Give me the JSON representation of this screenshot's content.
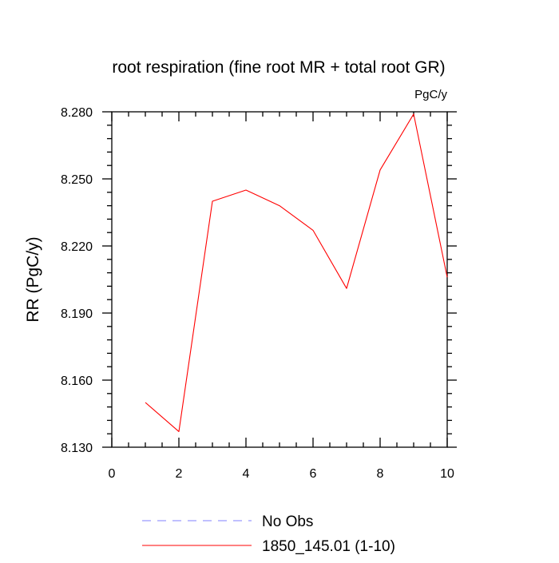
{
  "chart_data": {
    "type": "line",
    "title": "root respiration (fine root MR + total root GR)",
    "units_label": "PgC/y",
    "xlabel": "",
    "ylabel": "RR  (PgC/y)",
    "xlim": [
      0,
      10
    ],
    "ylim": [
      8.13,
      8.28
    ],
    "x_ticks": [
      0,
      2,
      4,
      6,
      8,
      10
    ],
    "x_tick_labels": [
      "0",
      "2",
      "4",
      "6",
      "8",
      "10"
    ],
    "y_ticks": [
      8.13,
      8.16,
      8.19,
      8.22,
      8.25,
      8.28
    ],
    "y_tick_labels": [
      "8.130",
      "8.160",
      "8.190",
      "8.220",
      "8.250",
      "8.280"
    ],
    "grid": false,
    "legend_position": "bottom",
    "series": [
      {
        "name": "1850_145.01 (1-10)",
        "color": "#ff0000",
        "style": "solid",
        "x": [
          1,
          2,
          3,
          4,
          5,
          6,
          7,
          8,
          9,
          10
        ],
        "y": [
          8.15,
          8.137,
          8.24,
          8.245,
          8.238,
          8.227,
          8.201,
          8.254,
          8.279,
          8.206
        ]
      }
    ],
    "legend": [
      {
        "label": "No Obs",
        "color": "#8080ff",
        "style": "dashed"
      },
      {
        "label": "1850_145.01 (1-10)",
        "color": "#ff0000",
        "style": "solid"
      }
    ]
  }
}
